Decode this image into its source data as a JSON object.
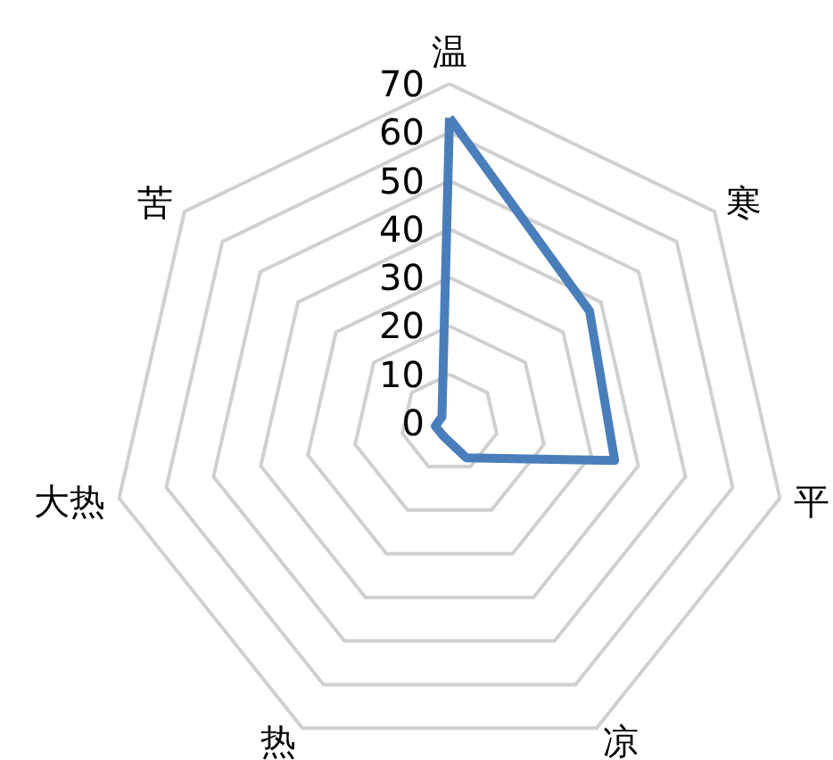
{
  "chart_data": {
    "type": "radar",
    "categories": [
      "温",
      "寒",
      "平",
      "凉",
      "热",
      "大热",
      "苦"
    ],
    "series": [
      {
        "color": "#4a7ebb",
        "values": [
          63,
          37,
          35,
          8,
          3,
          3,
          2
        ]
      }
    ],
    "ylim": [
      0,
      70
    ],
    "yticks": [
      0,
      10,
      20,
      30,
      40,
      50,
      60,
      70
    ],
    "grid": true,
    "marker": "none",
    "line_style": "solid"
  }
}
